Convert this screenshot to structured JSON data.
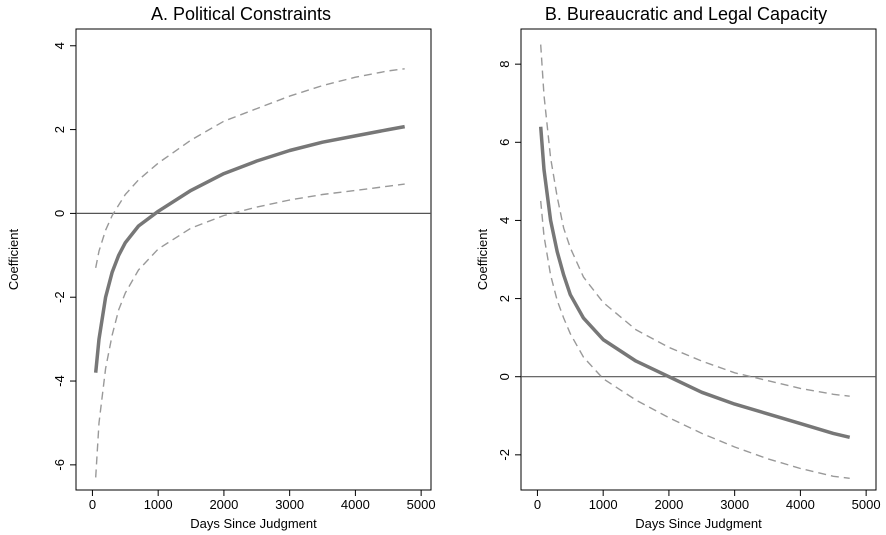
{
  "chart_data": [
    {
      "type": "line",
      "title": "A. Political Constraints",
      "xlabel": "Days Since Judgment",
      "ylabel": "Coefficient",
      "xlim": [
        -250,
        5150
      ],
      "ylim": [
        -6.6,
        4.4
      ],
      "xticks": [
        0,
        1000,
        2000,
        3000,
        4000,
        5000
      ],
      "yticks": [
        -6,
        -4,
        -2,
        0,
        2,
        4
      ],
      "xtick_labels": [
        "0",
        "1000",
        "2000",
        "3000",
        "4000",
        "5000"
      ],
      "ytick_labels": [
        "-6",
        "-4",
        "-2",
        "0",
        "2",
        "4"
      ],
      "reference_line_y": 0,
      "grid": false,
      "series": [
        {
          "role": "estimate",
          "color": "#777777",
          "style": "solid",
          "x": [
            50,
            100,
            200,
            300,
            400,
            500,
            700,
            1000,
            1500,
            2000,
            2500,
            3000,
            3500,
            4000,
            4500,
            4750
          ],
          "y": [
            -3.8,
            -3.0,
            -2.0,
            -1.4,
            -1.0,
            -0.7,
            -0.3,
            0.05,
            0.55,
            0.95,
            1.25,
            1.5,
            1.7,
            1.85,
            2.0,
            2.07
          ]
        },
        {
          "role": "upper 95% CI",
          "color": "#999999",
          "style": "dashed",
          "x": [
            50,
            100,
            200,
            300,
            400,
            500,
            700,
            1000,
            1500,
            2000,
            2500,
            3000,
            3500,
            4000,
            4500,
            4750
          ],
          "y": [
            -1.3,
            -0.9,
            -0.4,
            -0.05,
            0.2,
            0.45,
            0.8,
            1.2,
            1.75,
            2.2,
            2.5,
            2.8,
            3.05,
            3.25,
            3.4,
            3.45
          ]
        },
        {
          "role": "lower 95% CI",
          "color": "#999999",
          "style": "dashed",
          "x": [
            50,
            100,
            200,
            300,
            400,
            500,
            700,
            1000,
            1500,
            2000,
            2500,
            3000,
            3500,
            4000,
            4500,
            4750
          ],
          "y": [
            -6.3,
            -5.0,
            -3.7,
            -2.9,
            -2.3,
            -1.9,
            -1.35,
            -0.85,
            -0.35,
            -0.05,
            0.15,
            0.32,
            0.45,
            0.55,
            0.65,
            0.7
          ]
        }
      ]
    },
    {
      "type": "line",
      "title": "B. Bureaucratic and Legal Capacity",
      "xlabel": "Days Since Judgment",
      "ylabel": "Coefficient",
      "xlim": [
        -250,
        5150
      ],
      "ylim": [
        -2.9,
        8.9
      ],
      "xticks": [
        0,
        1000,
        2000,
        3000,
        4000,
        5000
      ],
      "yticks": [
        -2,
        0,
        2,
        4,
        6,
        8
      ],
      "xtick_labels": [
        "0",
        "1000",
        "2000",
        "3000",
        "4000",
        "5000"
      ],
      "ytick_labels": [
        "-2",
        "0",
        "2",
        "4",
        "6",
        "8"
      ],
      "reference_line_y": 0,
      "grid": false,
      "series": [
        {
          "role": "estimate",
          "color": "#777777",
          "style": "solid",
          "x": [
            50,
            100,
            200,
            300,
            400,
            500,
            700,
            1000,
            1500,
            2000,
            2500,
            3000,
            3500,
            4000,
            4500,
            4750
          ],
          "y": [
            6.4,
            5.3,
            4.0,
            3.2,
            2.6,
            2.1,
            1.5,
            0.95,
            0.4,
            0.0,
            -0.4,
            -0.7,
            -0.95,
            -1.2,
            -1.45,
            -1.55
          ]
        },
        {
          "role": "upper 95% CI",
          "color": "#999999",
          "style": "dashed",
          "x": [
            50,
            100,
            200,
            300,
            400,
            500,
            700,
            1000,
            1500,
            2000,
            2500,
            3000,
            3500,
            4000,
            4500,
            4750
          ],
          "y": [
            8.5,
            7.2,
            5.6,
            4.6,
            3.8,
            3.3,
            2.55,
            1.9,
            1.2,
            0.75,
            0.4,
            0.1,
            -0.1,
            -0.3,
            -0.45,
            -0.5
          ]
        },
        {
          "role": "lower 95% CI",
          "color": "#999999",
          "style": "dashed",
          "x": [
            50,
            100,
            200,
            300,
            400,
            500,
            700,
            1000,
            1500,
            2000,
            2500,
            3000,
            3500,
            4000,
            4500,
            4750
          ],
          "y": [
            4.5,
            3.6,
            2.6,
            1.95,
            1.5,
            1.1,
            0.5,
            -0.05,
            -0.6,
            -1.05,
            -1.45,
            -1.8,
            -2.1,
            -2.35,
            -2.55,
            -2.6
          ]
        }
      ]
    }
  ]
}
